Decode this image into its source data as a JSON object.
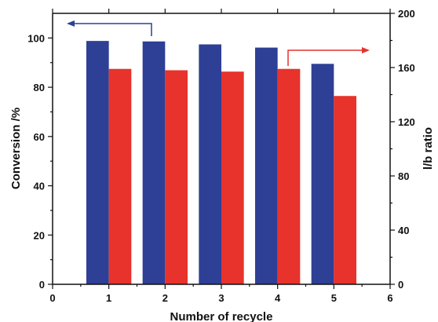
{
  "chart_data": {
    "type": "bar",
    "x_label": "Number of recycle",
    "y_left_label": "Conversion /%",
    "y_right_label": "l/b ratio",
    "x_range": [
      0,
      6
    ],
    "x_ticks": [
      "0",
      "1",
      "2",
      "3",
      "4",
      "5",
      "6"
    ],
    "y_left_range": [
      0,
      110
    ],
    "y_left_ticks": [
      "0",
      "20",
      "40",
      "60",
      "80",
      "100"
    ],
    "y_right_range": [
      0,
      200
    ],
    "y_right_ticks": [
      "0",
      "40",
      "80",
      "120",
      "160",
      "200"
    ],
    "categories": [
      1,
      2,
      3,
      4,
      5
    ],
    "series": [
      {
        "axis": "left",
        "color": "#2e3f96",
        "values": [
          98.8,
          98.6,
          97.4,
          96.1,
          89.5
        ]
      },
      {
        "axis": "right",
        "color": "#e8322c",
        "values": [
          159,
          158,
          157,
          159,
          139
        ]
      }
    ],
    "grid": false,
    "legend": "none"
  }
}
